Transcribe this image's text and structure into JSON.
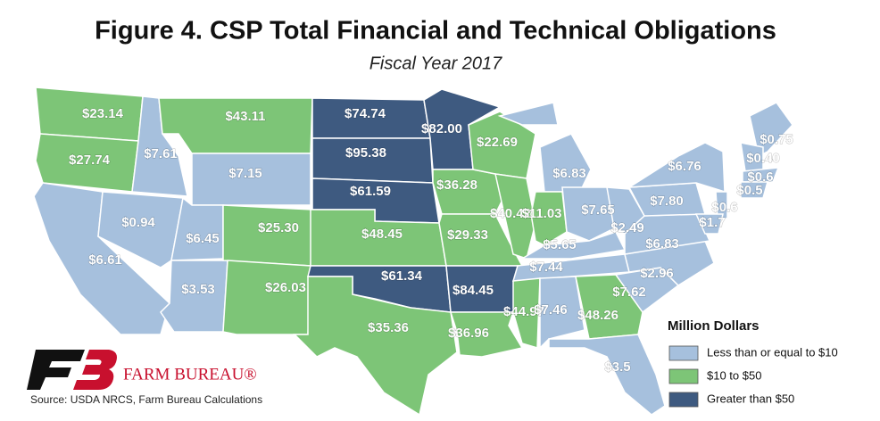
{
  "title": "Figure 4. CSP Total Financial and Technical Obligations",
  "subtitle": "Fiscal Year 2017",
  "legend": {
    "title": "Million Dollars",
    "items": [
      {
        "label": "Less than or equal to $10",
        "color": "#a6c0dd"
      },
      {
        "label": "$10 to $50",
        "color": "#7dc577"
      },
      {
        "label": "Greater than $50",
        "color": "#3e5a80"
      }
    ]
  },
  "states": [
    {
      "label": "$23.14",
      "class": 1
    },
    {
      "label": "$27.74",
      "class": 1
    },
    {
      "label": "$6.61",
      "class": 0
    },
    {
      "label": "$7.61",
      "class": 0
    },
    {
      "label": "$0.94",
      "class": 0
    },
    {
      "label": "$43.11",
      "class": 1
    },
    {
      "label": "$7.15",
      "class": 0
    },
    {
      "label": "$6.45",
      "class": 0
    },
    {
      "label": "$3.53",
      "class": 0
    },
    {
      "label": "$25.30",
      "class": 1
    },
    {
      "label": "$26.03",
      "class": 1
    },
    {
      "label": "$74.74",
      "class": 2
    },
    {
      "label": "$95.38",
      "class": 2
    },
    {
      "label": "$61.59",
      "class": 2
    },
    {
      "label": "$48.45",
      "class": 1
    },
    {
      "label": "$61.34",
      "class": 2
    },
    {
      "label": "$35.36",
      "class": 1
    },
    {
      "label": "$82.00",
      "class": 2
    },
    {
      "label": "$36.28",
      "class": 1
    },
    {
      "label": "$29.33",
      "class": 1
    },
    {
      "label": "$84.45",
      "class": 2
    },
    {
      "label": "$36.96",
      "class": 1
    },
    {
      "label": "$22.69",
      "class": 1
    },
    {
      "label": "$40.42",
      "class": 1
    },
    {
      "label": "$6.83",
      "class": 0
    },
    {
      "label": "$11.03",
      "class": 1
    },
    {
      "label": "$7.65",
      "class": 0
    },
    {
      "label": "$5.65",
      "class": 0
    },
    {
      "label": "$7.44",
      "class": 0
    },
    {
      "label": "$44.97",
      "class": 1
    },
    {
      "label": "$7.46",
      "class": 0
    },
    {
      "label": "$48.26",
      "class": 1
    },
    {
      "label": "$3.5",
      "class": 0
    },
    {
      "label": "$7.62",
      "class": 0
    },
    {
      "label": "$2.96",
      "class": 0
    },
    {
      "label": "$6.83",
      "class": 0
    },
    {
      "label": "$2.49",
      "class": 0
    },
    {
      "label": "$7.80",
      "class": 0
    },
    {
      "label": "$6.76",
      "class": 0
    },
    {
      "label": "$0.75",
      "class": 0
    },
    {
      "label": "$0.40",
      "class": 0
    },
    {
      "label": "$0.6",
      "class": 0
    },
    {
      "label": "$0.5",
      "class": 0
    },
    {
      "label": "$0.6",
      "class": 0
    },
    {
      "label": "$1.7",
      "class": 0
    }
  ],
  "logo": "FARM BUREAU®",
  "source": "Source: USDA NRCS, Farm Bureau Calculations"
}
